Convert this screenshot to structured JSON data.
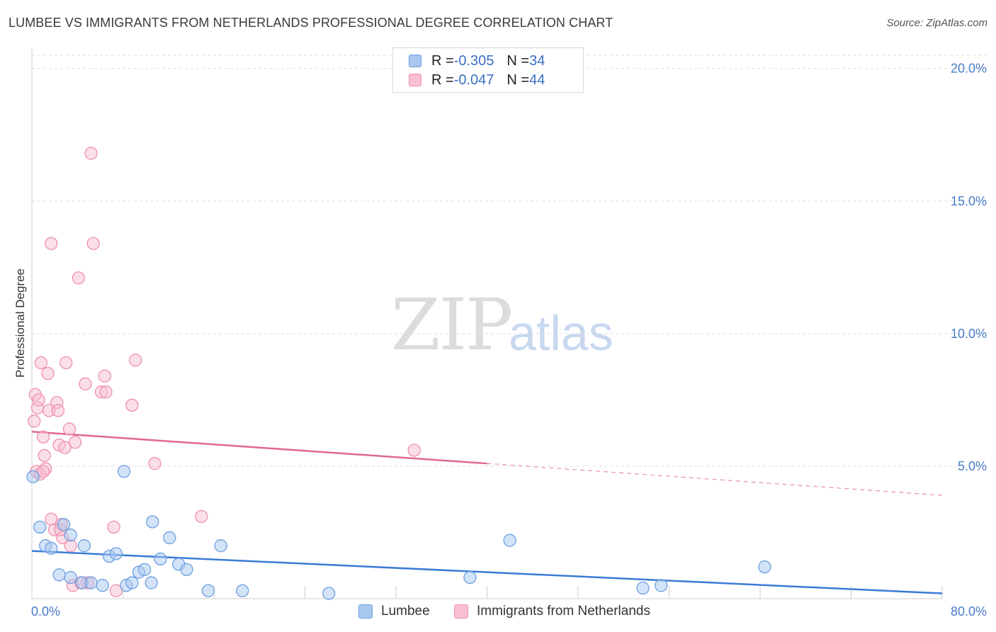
{
  "header": {
    "title": "LUMBEE VS IMMIGRANTS FROM NETHERLANDS PROFESSIONAL DEGREE CORRELATION CHART",
    "source": "Source: ZipAtlas.com"
  },
  "watermark": {
    "zip": "ZIP",
    "atlas": "atlas"
  },
  "legend": {
    "rows": [
      {
        "r_label": "R = ",
        "r_value": "-0.305",
        "n_label": "N = ",
        "n_value": "34",
        "color": "#a8c8f0",
        "border": "#6d9fe0"
      },
      {
        "r_label": "R = ",
        "r_value": "-0.047",
        "n_label": "N = ",
        "n_value": "44",
        "color": "#f8c0d2",
        "border": "#ee8fae"
      }
    ]
  },
  "bottom_legend": {
    "items": [
      {
        "label": "Lumbee",
        "color": "#a8c8f0",
        "border": "#6d9fe0"
      },
      {
        "label": "Immigrants from Netherlands",
        "color": "#f8c0d2",
        "border": "#ee8fae"
      }
    ]
  },
  "chart_data": {
    "type": "scatter",
    "title": "LUMBEE VS IMMIGRANTS FROM NETHERLANDS PROFESSIONAL DEGREE CORRELATION CHART",
    "xlabel": "",
    "ylabel": "Professional Degree",
    "xlim": [
      0,
      80
    ],
    "ylim": [
      0,
      20.5
    ],
    "x_tick_labels": [
      "0.0%",
      "80.0%"
    ],
    "y_ticks": [
      5,
      10,
      15,
      20
    ],
    "y_tick_labels": [
      "5.0%",
      "10.0%",
      "15.0%",
      "20.0%"
    ],
    "grid": "horizontal dashed",
    "legend_position": "top-center",
    "series": [
      {
        "name": "Lumbee",
        "color": "#6d9fe0",
        "fill": "#a8c8f0",
        "points": [
          [
            0.1,
            4.6
          ],
          [
            0.7,
            2.7
          ],
          [
            1.2,
            2.0
          ],
          [
            1.7,
            1.9
          ],
          [
            2.4,
            0.9
          ],
          [
            2.8,
            2.8
          ],
          [
            3.4,
            2.4
          ],
          [
            3.4,
            0.8
          ],
          [
            4.4,
            0.6
          ],
          [
            4.6,
            2.0
          ],
          [
            5.2,
            0.6
          ],
          [
            6.2,
            0.5
          ],
          [
            6.8,
            1.6
          ],
          [
            7.4,
            1.7
          ],
          [
            8.1,
            4.8
          ],
          [
            8.3,
            0.5
          ],
          [
            8.8,
            0.6
          ],
          [
            9.4,
            1.0
          ],
          [
            9.9,
            1.1
          ],
          [
            10.5,
            0.6
          ],
          [
            10.6,
            2.9
          ],
          [
            11.3,
            1.5
          ],
          [
            12.1,
            2.3
          ],
          [
            12.9,
            1.3
          ],
          [
            13.6,
            1.1
          ],
          [
            15.5,
            0.3
          ],
          [
            16.6,
            2.0
          ],
          [
            18.5,
            0.3
          ],
          [
            26.1,
            0.2
          ],
          [
            38.5,
            0.8
          ],
          [
            42.0,
            2.2
          ],
          [
            53.7,
            0.4
          ],
          [
            55.3,
            0.5
          ],
          [
            64.4,
            1.2
          ]
        ],
        "trend": {
          "x": [
            0,
            80
          ],
          "y": [
            1.8,
            0.2
          ]
        }
      },
      {
        "name": "Immigrants from Netherlands",
        "color": "#ee8fae",
        "fill": "#f8c0d2",
        "points": [
          [
            0.2,
            6.7
          ],
          [
            0.3,
            7.7
          ],
          [
            0.5,
            7.2
          ],
          [
            0.6,
            7.5
          ],
          [
            0.7,
            4.7
          ],
          [
            0.8,
            8.9
          ],
          [
            1.0,
            6.1
          ],
          [
            1.1,
            5.4
          ],
          [
            1.2,
            4.9
          ],
          [
            1.4,
            8.5
          ],
          [
            1.5,
            7.1
          ],
          [
            1.7,
            13.4
          ],
          [
            1.7,
            3.0
          ],
          [
            2.0,
            2.6
          ],
          [
            2.2,
            7.4
          ],
          [
            2.3,
            7.1
          ],
          [
            2.4,
            5.8
          ],
          [
            2.6,
            2.8
          ],
          [
            2.7,
            2.3
          ],
          [
            2.9,
            5.7
          ],
          [
            3.0,
            8.9
          ],
          [
            3.3,
            6.4
          ],
          [
            3.4,
            2.0
          ],
          [
            3.6,
            0.5
          ],
          [
            3.8,
            5.9
          ],
          [
            4.1,
            12.1
          ],
          [
            4.3,
            0.6
          ],
          [
            4.7,
            8.1
          ],
          [
            4.9,
            0.6
          ],
          [
            5.2,
            16.8
          ],
          [
            5.4,
            13.4
          ],
          [
            6.1,
            7.8
          ],
          [
            6.4,
            8.4
          ],
          [
            6.5,
            7.8
          ],
          [
            7.2,
            2.7
          ],
          [
            7.4,
            0.3
          ],
          [
            8.8,
            7.3
          ],
          [
            9.1,
            9.0
          ],
          [
            10.8,
            5.1
          ],
          [
            14.9,
            3.1
          ],
          [
            33.6,
            5.6
          ],
          [
            0.4,
            4.8
          ],
          [
            1.0,
            4.8
          ],
          [
            2.5,
            2.6
          ]
        ],
        "trend": {
          "x": [
            0,
            40
          ],
          "y": [
            6.3,
            5.1
          ]
        },
        "trend_extension": {
          "x": [
            40,
            80
          ],
          "y": [
            5.1,
            3.9
          ]
        }
      }
    ]
  }
}
